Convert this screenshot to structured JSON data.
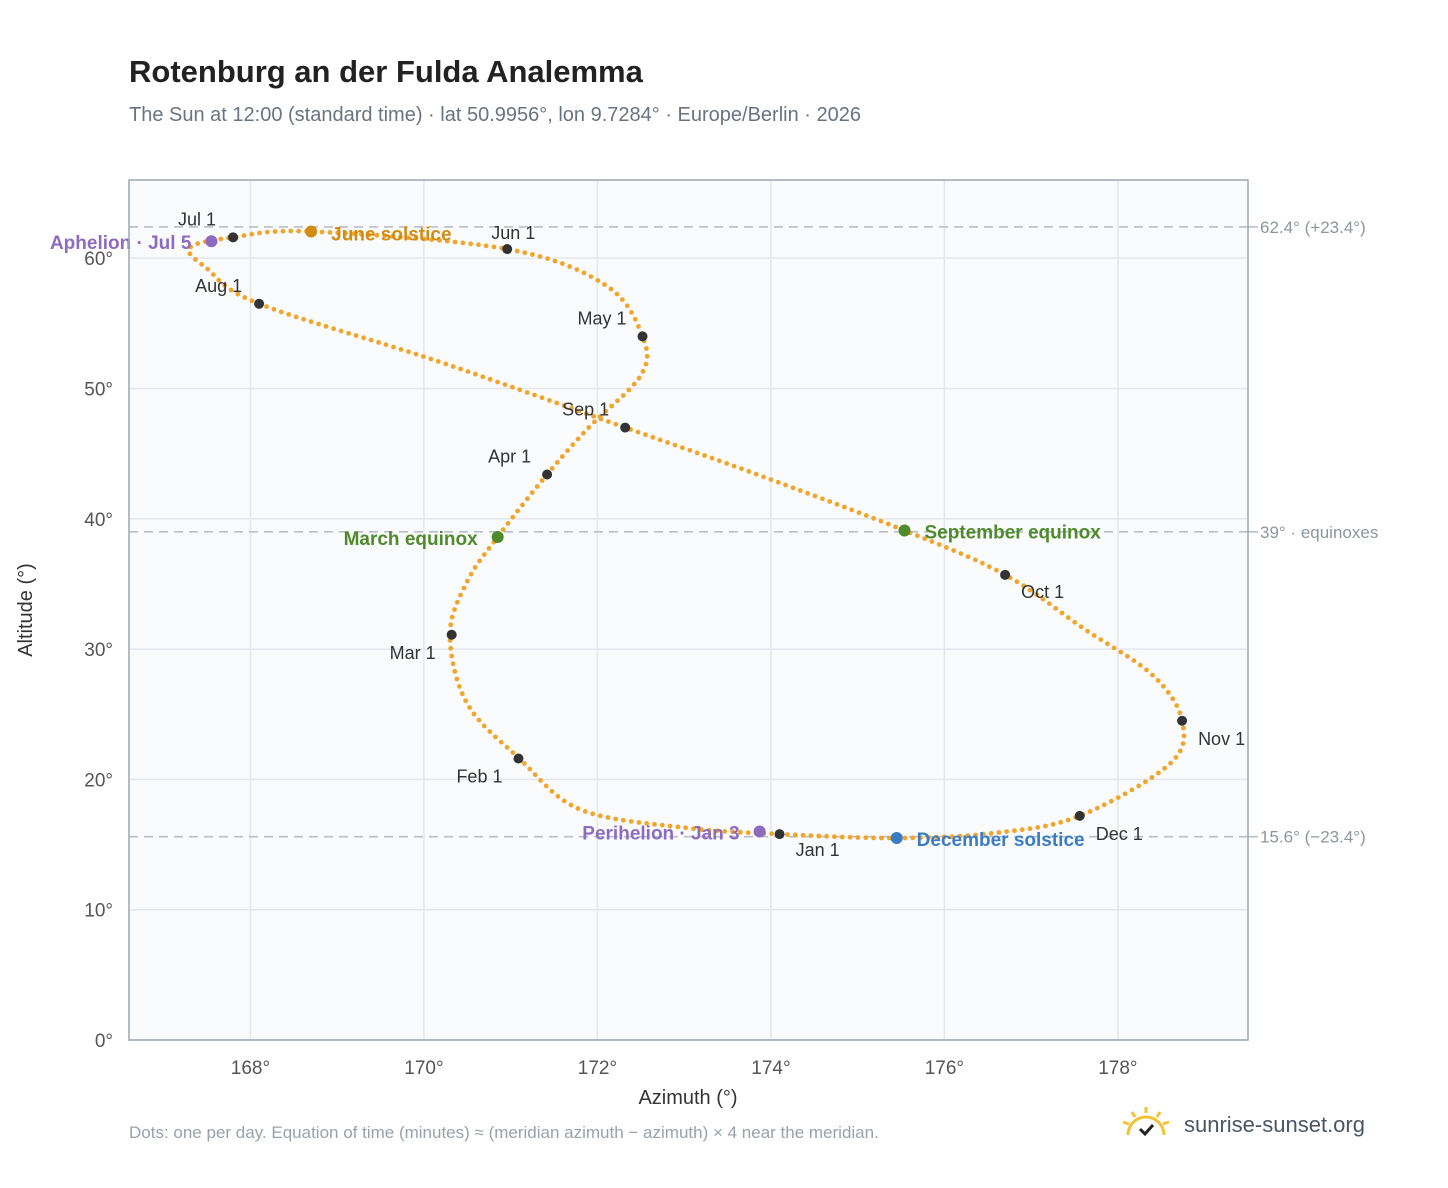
{
  "header": {
    "title": "Rotenburg an der Fulda Analemma",
    "subtitle": "The Sun at 12:00 (standard time) · lat 50.9956°, lon 9.7284° · Europe/Berlin · 2026"
  },
  "footer": {
    "note": "Dots: one per day. Equation of time (minutes) ≈ (meridian azimuth − azimuth) × 4 near the meridian.",
    "brand": "sunrise-sunset.org",
    "brand_icon": "sun-check-icon"
  },
  "colors": {
    "path": "#f2a52a",
    "month_marker": "#333333",
    "june_solstice": "#d18c12",
    "december_solstice": "#3b7dc4",
    "equinox": "#4f8a2b",
    "perihelion_aphelion": "#8d6bbf",
    "reference_line": "#b9bfc7",
    "plot_bg": "#f9fbfd"
  },
  "chart_data": {
    "type": "scatter",
    "title": "Rotenburg an der Fulda Analemma",
    "xlabel": "Azimuth (°)",
    "ylabel": "Altitude (°)",
    "xlim": [
      166.6,
      179.5
    ],
    "ylim": [
      0,
      66
    ],
    "xticks": [
      168,
      170,
      172,
      174,
      176,
      178
    ],
    "yticks": [
      0,
      10,
      20,
      30,
      40,
      50,
      60
    ],
    "x_tick_labels": [
      "168°",
      "170°",
      "172°",
      "174°",
      "176°",
      "178°"
    ],
    "y_tick_labels": [
      "0°",
      "10°",
      "20°",
      "30°",
      "40°",
      "50°",
      "60°"
    ],
    "grid": true,
    "series": [
      {
        "name": "",
        "marker": "dots, one per day",
        "points": [
          [
            174.1,
            15.8
          ],
          [
            173.0,
            16.3
          ],
          [
            171.8,
            17.7
          ],
          [
            171.1,
            21.6
          ],
          [
            170.5,
            25.8
          ],
          [
            170.3,
            31.1
          ],
          [
            170.5,
            35.2
          ],
          [
            170.85,
            38.6
          ],
          [
            171.42,
            43.4
          ],
          [
            171.9,
            47.0
          ],
          [
            172.5,
            51.0
          ],
          [
            172.52,
            54.0
          ],
          [
            172.1,
            57.9
          ],
          [
            170.96,
            60.7
          ],
          [
            168.7,
            62.05
          ],
          [
            167.8,
            61.6
          ],
          [
            167.3,
            60.8
          ],
          [
            167.5,
            59.2
          ],
          [
            168.1,
            56.5
          ],
          [
            170.2,
            52.0
          ],
          [
            172.32,
            47.0
          ],
          [
            173.8,
            43.5
          ],
          [
            175.54,
            39.1
          ],
          [
            176.7,
            35.7
          ],
          [
            177.6,
            31.6
          ],
          [
            178.4,
            28.0
          ],
          [
            178.74,
            24.5
          ],
          [
            178.6,
            21.2
          ],
          [
            177.56,
            17.2
          ],
          [
            176.6,
            15.9
          ],
          [
            175.45,
            15.5
          ],
          [
            174.1,
            15.8
          ]
        ]
      }
    ],
    "month_markers": [
      {
        "label": "Jan 1",
        "az": 174.1,
        "alt": 15.8
      },
      {
        "label": "Feb 1",
        "az": 171.09,
        "alt": 21.6
      },
      {
        "label": "Mar 1",
        "az": 170.32,
        "alt": 31.1
      },
      {
        "label": "Apr 1",
        "az": 171.42,
        "alt": 43.4
      },
      {
        "label": "May 1",
        "az": 172.52,
        "alt": 54.0
      },
      {
        "label": "Jun 1",
        "az": 170.96,
        "alt": 60.7
      },
      {
        "label": "Jul 1",
        "az": 167.8,
        "alt": 61.6
      },
      {
        "label": "Aug 1",
        "az": 168.1,
        "alt": 56.5
      },
      {
        "label": "Sep 1",
        "az": 172.32,
        "alt": 47.0
      },
      {
        "label": "Oct 1",
        "az": 176.7,
        "alt": 35.7
      },
      {
        "label": "Nov 1",
        "az": 178.74,
        "alt": 24.5
      },
      {
        "label": "Dec 1",
        "az": 177.56,
        "alt": 17.2
      }
    ],
    "events": [
      {
        "label": "June solstice",
        "az": 168.7,
        "alt": 62.05,
        "color": "#d18c12"
      },
      {
        "label": "December solstice",
        "az": 175.45,
        "alt": 15.5,
        "color": "#3b7dc4"
      },
      {
        "label": "March equinox",
        "az": 170.85,
        "alt": 38.6,
        "color": "#4f8a2b"
      },
      {
        "label": "September equinox",
        "az": 175.54,
        "alt": 39.1,
        "color": "#4f8a2b"
      },
      {
        "label": "Perihelion · Jan 3",
        "az": 173.87,
        "alt": 16.0,
        "color": "#8d6bbf"
      },
      {
        "label": "Aphelion · Jul 5",
        "az": 167.55,
        "alt": 61.3,
        "color": "#8d6bbf"
      }
    ],
    "reference_lines": [
      {
        "label": "62.4° (+23.4°)",
        "alt": 62.4
      },
      {
        "label": "39° · equinoxes",
        "alt": 39.0
      },
      {
        "label": "15.6° (−23.4°)",
        "alt": 15.6
      }
    ]
  }
}
